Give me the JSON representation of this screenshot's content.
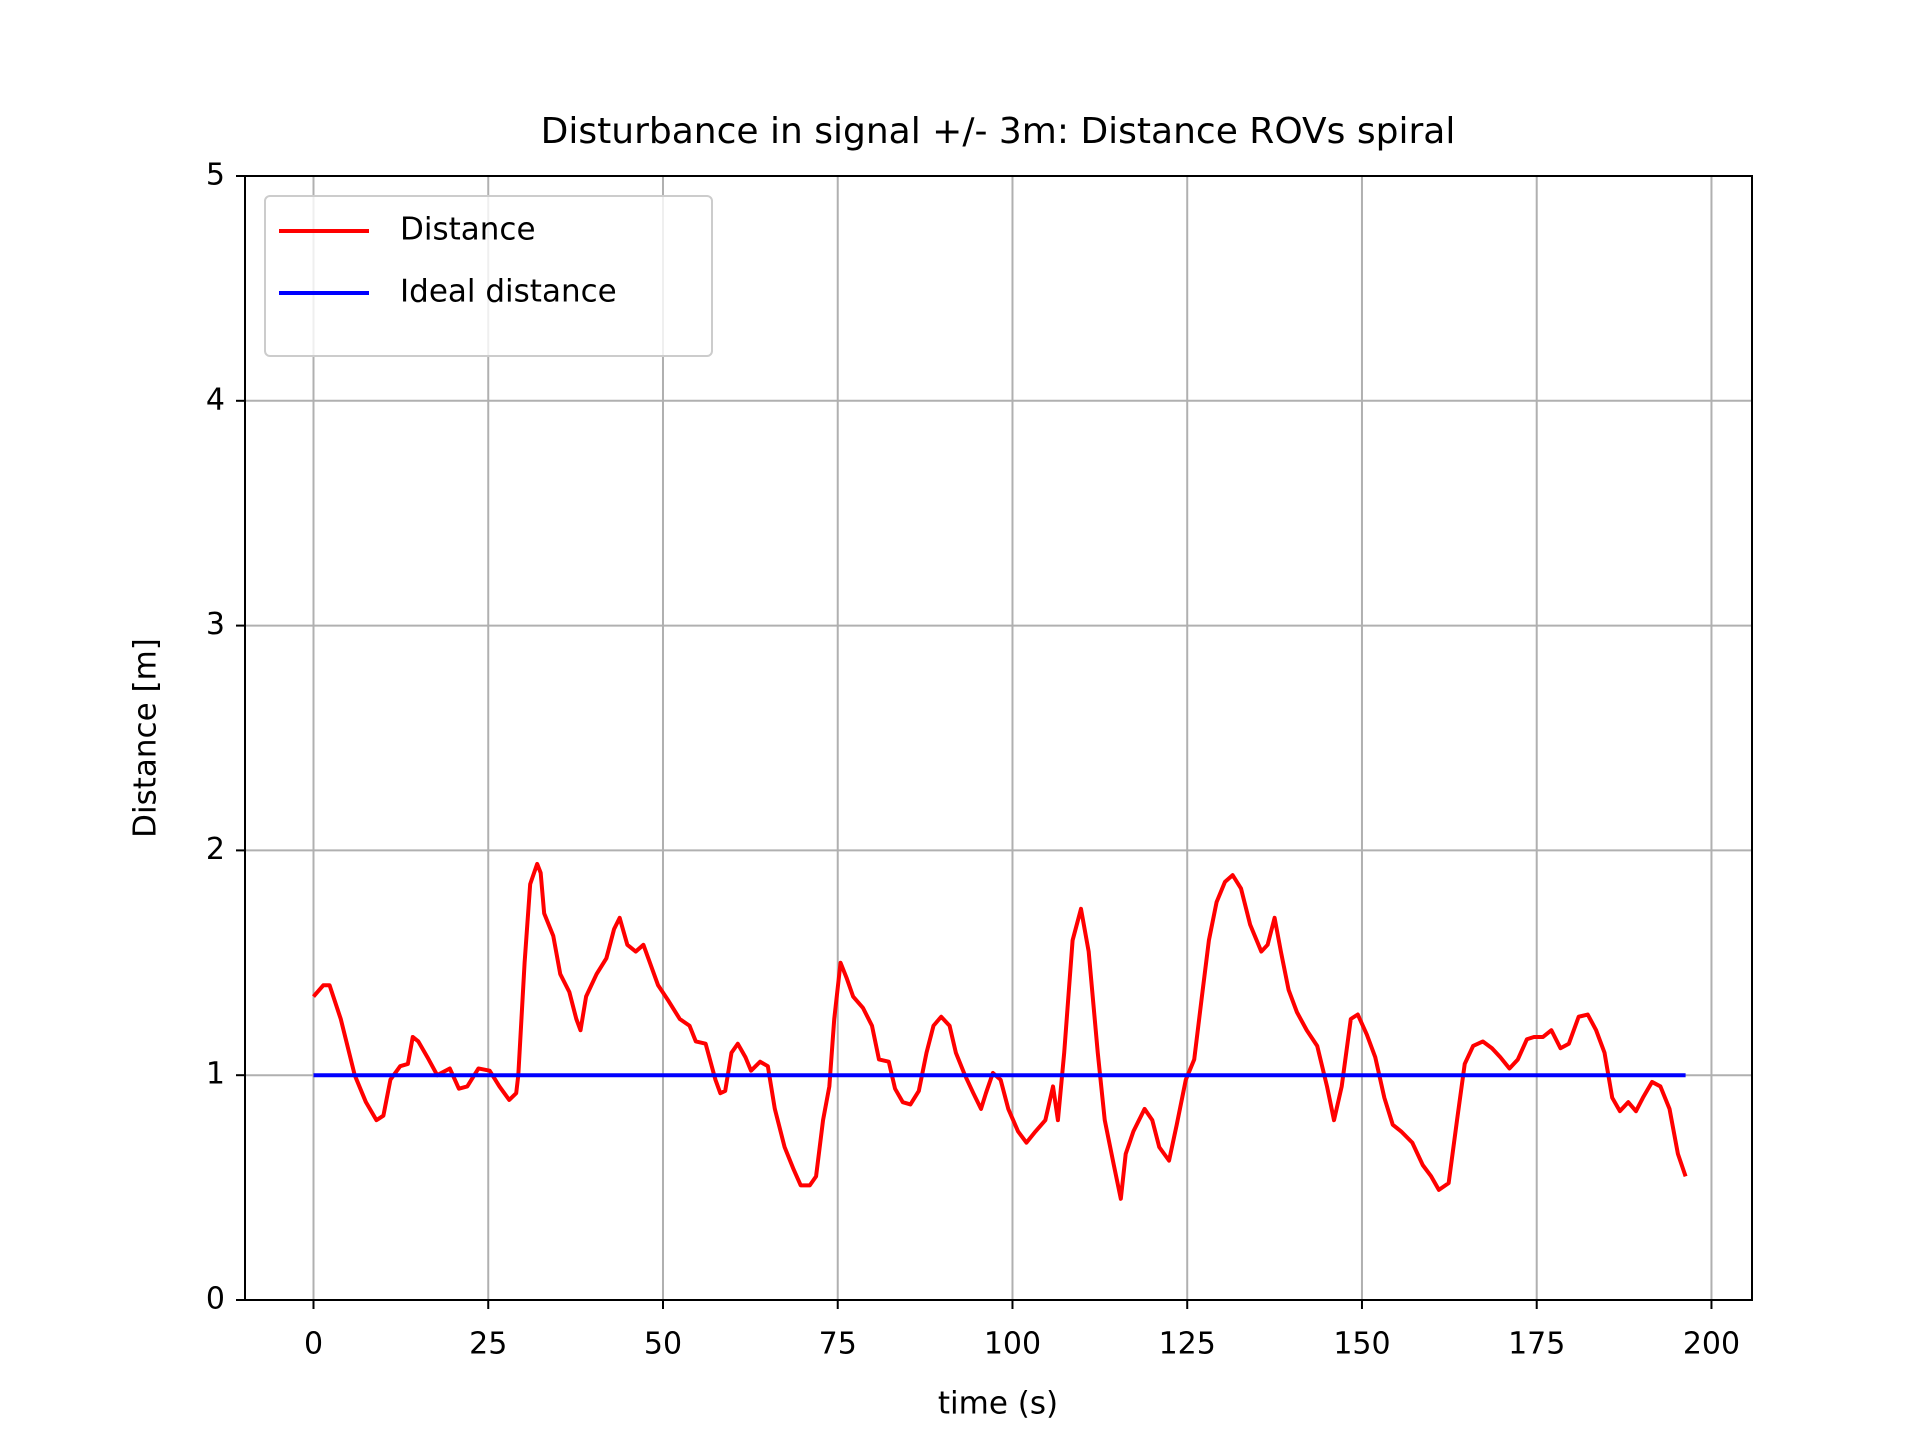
{
  "chart_data": {
    "type": "line",
    "title": "Disturbance in signal +/- 3m: Distance ROVs spiral",
    "x_label": "time (s)",
    "y_label": "Distance [m]",
    "xlim": [
      -9.8,
      205.8
    ],
    "ylim": [
      0,
      5
    ],
    "xticks": [
      0,
      25,
      50,
      75,
      100,
      125,
      150,
      175,
      200
    ],
    "yticks": [
      0,
      1,
      2,
      3,
      4,
      5
    ],
    "grid": true,
    "legend": "upper left",
    "series": [
      {
        "name": "Distance",
        "color": "#ff0000",
        "x": [
          0,
          1.4,
          2.3,
          3.9,
          5.9,
          7.5,
          9,
          10,
          11,
          12.4,
          13.5,
          14.2,
          15,
          16.3,
          17.7,
          19.5,
          20.8,
          22,
          23.6,
          25.2,
          26.6,
          28,
          29,
          29.3,
          30.2,
          31,
          32,
          32.5,
          33,
          34.3,
          35.3,
          36.6,
          37.6,
          38.2,
          39,
          40.5,
          41.9,
          43,
          43.8,
          44.9,
          46.1,
          47.2,
          47.9,
          49.3,
          50.8,
          52.4,
          53.8,
          54.7,
          56.1,
          57.5,
          58.2,
          58.9,
          59.8,
          60.7,
          61.8,
          62.6,
          63.9,
          65,
          66,
          67.4,
          68.7,
          69.7,
          71,
          71.9,
          72.9,
          73.8,
          74.5,
          75.4,
          76.3,
          77.2,
          78.6,
          79.9,
          80.9,
          82.3,
          83.2,
          84.3,
          85.4,
          86.6,
          87.7,
          88.7,
          89.8,
          91,
          91.9,
          93.2,
          94.4,
          95.5,
          96.2,
          97.2,
          98.3,
          99.4,
          100.8,
          102,
          103.3,
          104.7,
          105.8,
          106.5,
          107.4,
          108.6,
          109.8,
          110.9,
          112.2,
          113.2,
          114.5,
          115.5,
          116.2,
          117.3,
          118.9,
          120,
          121,
          122.4,
          123.5,
          124.8,
          126,
          127.1,
          128.1,
          129.2,
          130.4,
          131.5,
          132.7,
          134,
          135.6,
          136.5,
          137.5,
          138.4,
          139.5,
          140.7,
          142.1,
          143.6,
          145,
          146,
          147.1,
          148.4,
          149.4,
          150.7,
          151.9,
          153.2,
          154.4,
          155.6,
          157.2,
          158.7,
          159.9,
          161,
          162.4,
          163.6,
          164.7,
          165.9,
          167.3,
          168.6,
          169.8,
          171.1,
          172.3,
          173.6,
          174.6,
          175.9,
          177.1,
          178.4,
          179.6,
          181,
          182.3,
          183.5,
          184.7,
          185.8,
          186.9,
          188.1,
          189.2,
          190.2,
          191.5,
          192.7,
          194,
          195.2,
          196.3
        ],
        "values": [
          1.35,
          1.4,
          1.4,
          1.25,
          1.0,
          0.88,
          0.8,
          0.82,
          0.98,
          1.04,
          1.05,
          1.17,
          1.15,
          1.08,
          1.0,
          1.03,
          0.94,
          0.95,
          1.03,
          1.02,
          0.95,
          0.89,
          0.92,
          1.0,
          1.5,
          1.85,
          1.94,
          1.9,
          1.72,
          1.62,
          1.45,
          1.37,
          1.25,
          1.2,
          1.35,
          1.45,
          1.52,
          1.65,
          1.7,
          1.58,
          1.55,
          1.58,
          1.52,
          1.4,
          1.33,
          1.25,
          1.22,
          1.15,
          1.14,
          0.98,
          0.92,
          0.93,
          1.1,
          1.14,
          1.08,
          1.02,
          1.06,
          1.04,
          0.85,
          0.68,
          0.58,
          0.51,
          0.51,
          0.55,
          0.8,
          0.95,
          1.25,
          1.5,
          1.43,
          1.35,
          1.3,
          1.22,
          1.07,
          1.06,
          0.94,
          0.88,
          0.87,
          0.93,
          1.1,
          1.22,
          1.26,
          1.22,
          1.1,
          1.0,
          0.92,
          0.85,
          0.92,
          1.01,
          0.98,
          0.85,
          0.75,
          0.7,
          0.75,
          0.8,
          0.95,
          0.8,
          1.1,
          1.6,
          1.74,
          1.55,
          1.1,
          0.8,
          0.6,
          0.45,
          0.65,
          0.75,
          0.85,
          0.8,
          0.68,
          0.62,
          0.78,
          0.98,
          1.07,
          1.35,
          1.6,
          1.77,
          1.86,
          1.89,
          1.83,
          1.67,
          1.55,
          1.58,
          1.7,
          1.55,
          1.38,
          1.28,
          1.2,
          1.13,
          0.95,
          0.8,
          0.95,
          1.25,
          1.27,
          1.18,
          1.08,
          0.9,
          0.78,
          0.75,
          0.7,
          0.6,
          0.55,
          0.49,
          0.52,
          0.8,
          1.05,
          1.13,
          1.15,
          1.12,
          1.08,
          1.03,
          1.07,
          1.16,
          1.17,
          1.17,
          1.2,
          1.12,
          1.14,
          1.26,
          1.27,
          1.2,
          1.1,
          0.9,
          0.84,
          0.88,
          0.84,
          0.9,
          0.97,
          0.95,
          0.85,
          0.65,
          0.55
        ]
      },
      {
        "name": "Ideal distance",
        "color": "#0000ff",
        "x": [
          0,
          196.3
        ],
        "values": [
          1,
          1
        ]
      }
    ]
  }
}
